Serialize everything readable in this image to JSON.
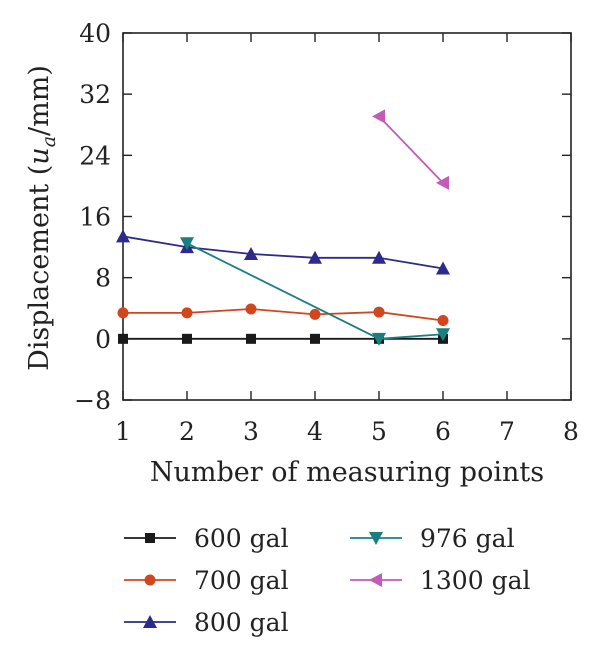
{
  "chart_data": {
    "type": "line",
    "title": "",
    "xlabel": "Number of measuring points",
    "ylabel_prefix": "Displacement (",
    "ylabel_var": "u",
    "ylabel_sub": "a",
    "ylabel_suffix": "/mm)",
    "xlim": [
      1,
      8
    ],
    "ylim": [
      -8,
      40
    ],
    "xticks": [
      1,
      2,
      3,
      4,
      5,
      6,
      7,
      8
    ],
    "yticks": [
      -8,
      0,
      8,
      16,
      24,
      32,
      40
    ],
    "grid": false,
    "legend_position": "bottom",
    "series": [
      {
        "name": "600 gal",
        "color": "#1a1a1a",
        "marker": "square",
        "x": [
          1,
          2,
          3,
          4,
          5,
          6
        ],
        "y": [
          0,
          0,
          0,
          0,
          0,
          0
        ]
      },
      {
        "name": "700 gal",
        "color": "#d2461e",
        "marker": "circle",
        "x": [
          1,
          2,
          3,
          4,
          5,
          6
        ],
        "y": [
          3.4,
          3.4,
          3.9,
          3.2,
          3.5,
          2.4
        ]
      },
      {
        "name": "800 gal",
        "color": "#2d2a8a",
        "marker": "triangle-up",
        "x": [
          1,
          2,
          3,
          4,
          5,
          6
        ],
        "y": [
          13.4,
          12.0,
          11.1,
          10.6,
          10.6,
          9.2
        ]
      },
      {
        "name": "976 gal",
        "color": "#1a7f80",
        "marker": "triangle-down",
        "x": [
          2,
          5,
          6
        ],
        "y": [
          12.5,
          0,
          0.6
        ]
      },
      {
        "name": "1300 gal",
        "color": "#c25cb8",
        "marker": "triangle-left",
        "x": [
          5,
          6
        ],
        "y": [
          29.1,
          20.4
        ]
      }
    ]
  }
}
